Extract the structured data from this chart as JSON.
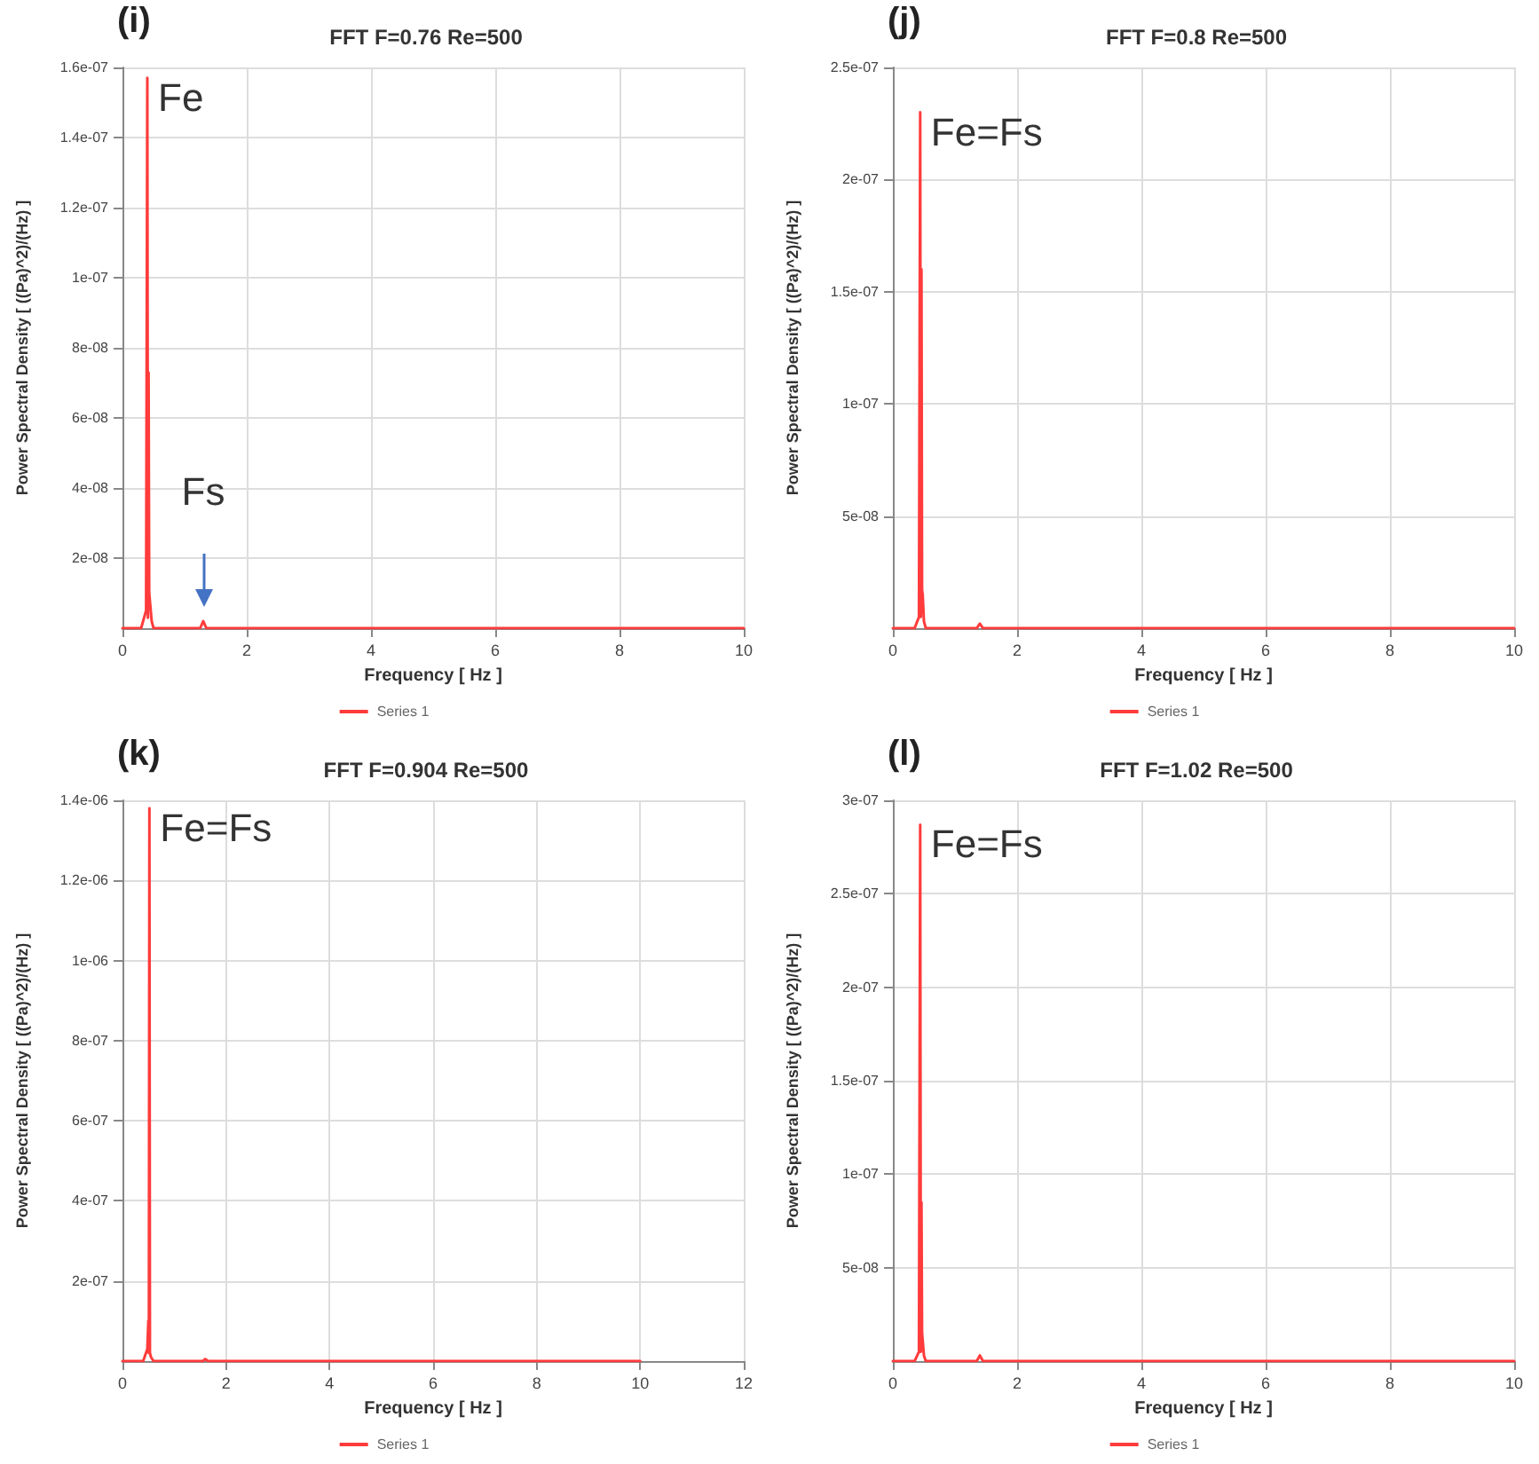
{
  "chart_data": [
    {
      "type": "line",
      "title": "FFT F=0.76 Re=500",
      "xlabel": "Frequency [ Hz ]",
      "ylabel": "Power Spectral Density [ ((Pa)^2)/(Hz) ]",
      "annotations": [
        "(i)",
        {
          "text": "Fe",
          "x": 0.4,
          "y": 1.57e-07
        },
        {
          "text": "Fs",
          "x": 1.3,
          "y": 2e-09
        }
      ],
      "x": [
        0,
        0.3,
        0.38,
        0.4,
        0.41,
        0.42,
        0.43,
        0.45,
        0.47,
        0.5,
        0.55,
        1.0,
        1.25,
        1.3,
        1.35,
        2,
        4,
        6,
        8,
        10
      ],
      "series": [
        {
          "name": "Series 1",
          "color": "#ff3b3b",
          "values": [
            0,
            0,
            5e-09,
            1.57e-07,
            3e-09,
            7.3e-08,
            1e-08,
            1e-08,
            2e-09,
            0,
            0,
            0,
            0,
            2e-09,
            0,
            0,
            0,
            0,
            0,
            0
          ]
        }
      ],
      "xlim": [
        0,
        10
      ],
      "xticks": [
        0,
        2,
        4,
        6,
        8,
        10
      ],
      "ylim": [
        0,
        1.6e-07
      ],
      "yticks": [
        {
          "value": 2e-08,
          "label": "2e-08"
        },
        {
          "value": 4e-08,
          "label": "4e-08"
        },
        {
          "value": 6e-08,
          "label": "6e-08"
        },
        {
          "value": 8e-08,
          "label": "8e-08"
        },
        {
          "value": 1e-07,
          "label": "1e-07"
        },
        {
          "value": 1.2e-07,
          "label": "1.2e-07"
        },
        {
          "value": 1.4e-07,
          "label": "1.4e-07"
        },
        {
          "value": 1.6e-07,
          "label": "1.6e-07"
        }
      ],
      "grid": true,
      "legend": "bottom",
      "marker": "none",
      "line_style": "solid"
    },
    {
      "type": "line",
      "title": "FFT F=0.8 Re=500",
      "xlabel": "Frequency [ Hz ]",
      "ylabel": "Power Spectral Density [ ((Pa)^2)/(Hz) ]",
      "annotations": [
        "(j)",
        {
          "text": "Fe=Fs",
          "x": 0.44,
          "y": 2.3e-07
        }
      ],
      "x": [
        0,
        0.35,
        0.42,
        0.44,
        0.45,
        0.46,
        0.47,
        0.48,
        0.5,
        0.53,
        0.6,
        1.0,
        1.35,
        1.4,
        1.45,
        2,
        4,
        6,
        8,
        10
      ],
      "series": [
        {
          "name": "Series 1",
          "color": "#ff3b3b",
          "values": [
            0,
            0,
            5e-09,
            2.3e-07,
            5e-09,
            1.6e-07,
            1.7e-08,
            1.5e-08,
            3e-09,
            0,
            0,
            0,
            0,
            2e-09,
            0,
            0,
            0,
            0,
            0,
            0
          ]
        }
      ],
      "xlim": [
        0,
        10
      ],
      "xticks": [
        0,
        2,
        4,
        6,
        8,
        10
      ],
      "ylim": [
        0,
        2.5e-07
      ],
      "yticks": [
        {
          "value": 5e-08,
          "label": "5e-08"
        },
        {
          "value": 1e-07,
          "label": "1e-07"
        },
        {
          "value": 1.5e-07,
          "label": "1.5e-07"
        },
        {
          "value": 2e-07,
          "label": "2e-07"
        },
        {
          "value": 2.5e-07,
          "label": "2.5e-07"
        }
      ],
      "grid": true,
      "legend": "bottom",
      "marker": "none",
      "line_style": "solid"
    },
    {
      "type": "line",
      "title": "FFT F=0.904 Re=500",
      "xlabel": "Frequency [ Hz ]",
      "ylabel": "Power Spectral Density [ ((Pa)^2)/(Hz) ]",
      "annotations": [
        "(k)",
        {
          "text": "Fe=Fs",
          "x": 0.52,
          "y": 1.38e-06
        }
      ],
      "x": [
        0,
        0.4,
        0.48,
        0.5,
        0.51,
        0.52,
        0.53,
        0.55,
        0.6,
        1.0,
        1.55,
        1.6,
        1.65,
        2,
        4,
        6,
        8,
        10
      ],
      "series": [
        {
          "name": "Series 1",
          "color": "#ff3b3b",
          "values": [
            0,
            0,
            3e-08,
            1e-07,
            2e-08,
            1.38e-06,
            2e-08,
            1e-08,
            0,
            0,
            0,
            5e-09,
            0,
            0,
            0,
            0,
            0,
            0
          ]
        }
      ],
      "xlim": [
        0,
        12
      ],
      "xticks": [
        0,
        2,
        4,
        6,
        8,
        10,
        12
      ],
      "ylim": [
        0,
        1.4e-06
      ],
      "yticks": [
        {
          "value": 2e-07,
          "label": "2e-07"
        },
        {
          "value": 4e-07,
          "label": "4e-07"
        },
        {
          "value": 6e-07,
          "label": "6e-07"
        },
        {
          "value": 8e-07,
          "label": "8e-07"
        },
        {
          "value": 1e-06,
          "label": "1e-06"
        },
        {
          "value": 1.2e-06,
          "label": "1.2e-06"
        },
        {
          "value": 1.4e-06,
          "label": "1.4e-06"
        }
      ],
      "grid": true,
      "legend": "bottom",
      "marker": "none",
      "line_style": "solid"
    },
    {
      "type": "line",
      "title": "FFT F=1.02 Re=500",
      "xlabel": "Frequency [ Hz ]",
      "ylabel": "Power Spectral Density [ ((Pa)^2)/(Hz) ]",
      "annotations": [
        "(l)",
        {
          "text": "Fe=Fs",
          "x": 0.44,
          "y": 2.87e-07
        }
      ],
      "x": [
        0,
        0.35,
        0.42,
        0.44,
        0.45,
        0.46,
        0.47,
        0.48,
        0.5,
        0.53,
        0.6,
        1.0,
        1.35,
        1.4,
        1.45,
        2,
        4,
        6,
        8,
        10
      ],
      "series": [
        {
          "name": "Series 1",
          "color": "#ff3b3b",
          "values": [
            0,
            0,
            5e-09,
            2.87e-07,
            5e-09,
            8.5e-08,
            1.5e-08,
            1.5e-08,
            3e-09,
            0,
            0,
            0,
            0,
            3e-09,
            0,
            0,
            0,
            0,
            0,
            0
          ]
        }
      ],
      "xlim": [
        0,
        10
      ],
      "xticks": [
        0,
        2,
        4,
        6,
        8,
        10
      ],
      "ylim": [
        0,
        3e-07
      ],
      "yticks": [
        {
          "value": 5e-08,
          "label": "5e-08"
        },
        {
          "value": 1e-07,
          "label": "1e-07"
        },
        {
          "value": 1.5e-07,
          "label": "1.5e-07"
        },
        {
          "value": 2e-07,
          "label": "2e-07"
        },
        {
          "value": 2.5e-07,
          "label": "2.5e-07"
        },
        {
          "value": 3e-07,
          "label": "3e-07"
        }
      ],
      "grid": true,
      "legend": "bottom",
      "marker": "none",
      "line_style": "solid"
    }
  ]
}
